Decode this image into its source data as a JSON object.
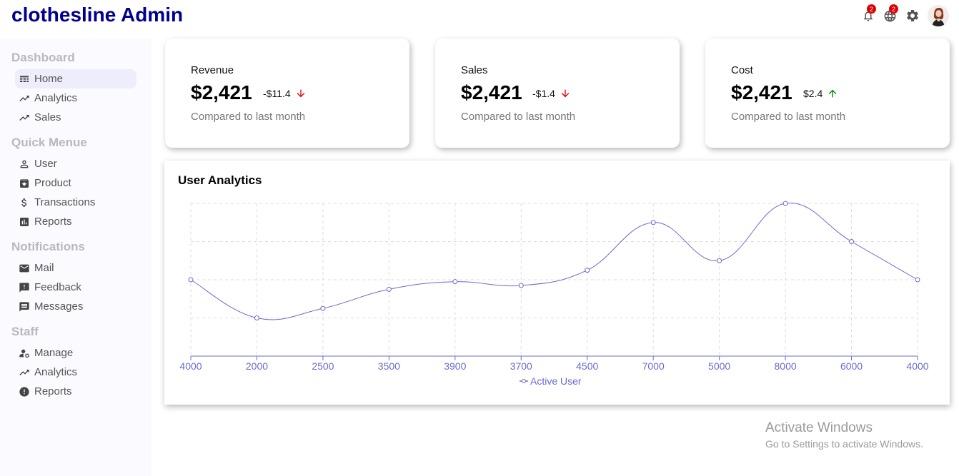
{
  "app": {
    "title": "clothesline Admin"
  },
  "topbar": {
    "notifications_badge": "2",
    "language_badge": "2",
    "icons": [
      "bell-icon",
      "globe-icon",
      "gear-icon",
      "avatar"
    ]
  },
  "sidebar": {
    "sections": [
      {
        "title": "Dashboard",
        "items": [
          {
            "label": "Home",
            "icon": "home-icon",
            "active": true
          },
          {
            "label": "Analytics",
            "icon": "trending-icon"
          },
          {
            "label": "Sales",
            "icon": "trending-icon"
          }
        ]
      },
      {
        "title": "Quick Menue",
        "items": [
          {
            "label": "User",
            "icon": "user-icon"
          },
          {
            "label": "Product",
            "icon": "archive-icon"
          },
          {
            "label": "Transactions",
            "icon": "dollar-icon"
          },
          {
            "label": "Reports",
            "icon": "bar-chart-icon"
          }
        ]
      },
      {
        "title": "Notifications",
        "items": [
          {
            "label": "Mail",
            "icon": "mail-icon"
          },
          {
            "label": "Feedback",
            "icon": "feedback-icon"
          },
          {
            "label": "Messages",
            "icon": "message-icon"
          }
        ]
      },
      {
        "title": "Staff",
        "items": [
          {
            "label": "Manage",
            "icon": "manage-accounts-icon"
          },
          {
            "label": "Analytics",
            "icon": "trending-icon"
          },
          {
            "label": "Reports",
            "icon": "error-icon"
          }
        ]
      }
    ]
  },
  "cards": [
    {
      "title": "Revenue",
      "money": "$2,421",
      "rate": "-$11.4",
      "direction": "down",
      "sub": "Compared to last month"
    },
    {
      "title": "Sales",
      "money": "$2,421",
      "rate": "-$1.4",
      "direction": "down",
      "sub": "Compared to last month"
    },
    {
      "title": "Cost",
      "money": "$2,421",
      "rate": "$2.4",
      "direction": "up",
      "sub": "Compared to last month"
    }
  ],
  "colors": {
    "down": "#e00000",
    "up": "#008000",
    "line": "#6b6bd0",
    "brand": "#00008b"
  },
  "chart_data": {
    "type": "line",
    "title": "User Analytics",
    "categories": [
      "4000",
      "2000",
      "2500",
      "3500",
      "3900",
      "3700",
      "4500",
      "7000",
      "5000",
      "8000",
      "6000",
      "4000"
    ],
    "series": [
      {
        "name": "Active User",
        "values": [
          4000,
          2000,
          2500,
          3500,
          3900,
          3700,
          4500,
          7000,
          5000,
          8000,
          6000,
          4000
        ]
      }
    ],
    "ylim": [
      0,
      8000
    ],
    "grid": true,
    "legend": "bottom-center"
  },
  "watermark": {
    "line1": "Activate Windows",
    "line2": "Go to Settings to activate Windows."
  }
}
